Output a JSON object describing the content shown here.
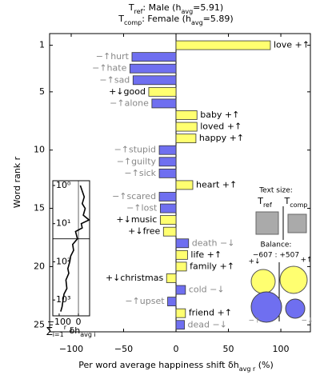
{
  "chart_data": {
    "type": "bar",
    "orientation": "horizontal",
    "title_lines": [
      [
        {
          "text": "T"
        },
        {
          "text": "ref",
          "sub": true
        },
        {
          "text": ": Male ("
        },
        {
          "text": "h"
        },
        {
          "text": "avg",
          "sub": true
        },
        {
          "text": "=5.91)"
        }
      ],
      [
        {
          "text": "T"
        },
        {
          "text": "comp",
          "sub": true
        },
        {
          "text": ": Female ("
        },
        {
          "text": "h"
        },
        {
          "text": "avg",
          "sub": true
        },
        {
          "text": "=5.89)"
        }
      ]
    ],
    "x_label": [
      {
        "text": "Per word average happiness shift δh"
      },
      {
        "text": "avg r",
        "sub": true
      },
      {
        "text": " (%)"
      }
    ],
    "y_label": "Word rank r",
    "categories": [
      "love +↑",
      "−↑hurt",
      "−↑hate",
      "−↑sad",
      "+↓good",
      "−↑alone",
      "baby +↑",
      "loved +↑",
      "happy +↑",
      "−↑stupid",
      "−↑guilty",
      "−↑sick",
      "heart +↑",
      "−↑scared",
      "−↑lost",
      "+↓music",
      "+↓free",
      "death −↓",
      "life +↑",
      "family +↑",
      "+↓christmas",
      "cold −↓",
      "−↑upset",
      "friend +↑",
      "dead −↓"
    ],
    "values": [
      90,
      -42,
      -44,
      -41,
      -26,
      -23,
      20,
      20,
      19,
      -16,
      -16,
      -16,
      16,
      -16,
      -15,
      -15,
      -12,
      12,
      11,
      10,
      -9,
      9,
      -8,
      9,
      8
    ],
    "colors": [
      "#ffff70",
      "#6f6ff0",
      "#6f6ff0",
      "#6f6ff0",
      "#ffff70",
      "#6f6ff0",
      "#ffff70",
      "#ffff70",
      "#ffff70",
      "#6f6ff0",
      "#6f6ff0",
      "#6f6ff0",
      "#ffff70",
      "#6f6ff0",
      "#6f6ff0",
      "#ffff70",
      "#ffff70",
      "#6f6ff0",
      "#ffff70",
      "#ffff70",
      "#ffff70",
      "#6f6ff0",
      "#6f6ff0",
      "#ffff70",
      "#6f6ff0"
    ],
    "label_colors": [
      "#000",
      "#888",
      "#888",
      "#888",
      "#000",
      "#888",
      "#000",
      "#000",
      "#000",
      "#888",
      "#888",
      "#888",
      "#000",
      "#888",
      "#888",
      "#000",
      "#000",
      "#888",
      "#000",
      "#000",
      "#000",
      "#888",
      "#888",
      "#000",
      "#888"
    ],
    "xlim": [
      -120.6,
      128.2
    ],
    "xticks": [
      {
        "value": -100,
        "label": "−100"
      },
      {
        "value": -50,
        "label": "−50"
      },
      0,
      50,
      100
    ],
    "ylim": [
      0,
      25.6
    ],
    "yticks": [
      1,
      5,
      10,
      15,
      20,
      25
    ],
    "inset_cumulative": {
      "ranks": [
        1,
        2,
        3,
        4,
        6,
        8,
        10,
        13,
        16,
        20,
        25,
        35,
        50,
        70,
        100,
        150,
        200,
        300,
        500,
        700,
        1000,
        1500,
        2000
      ],
      "values": [
        10,
        30,
        20,
        35,
        25,
        55,
        15,
        20,
        -15,
        -10,
        -5,
        -30,
        -25,
        -40,
        -45,
        -55,
        -50,
        -65,
        -60,
        -75,
        -80,
        -85,
        -92
      ],
      "xlim": [
        -133,
        58
      ],
      "xticks": [
        {
          "value": -100,
          "label": "−100"
        },
        0
      ],
      "ylim": [
        0.75,
        2600
      ],
      "yticks": [
        {
          "value": 1,
          "label": "10⁰"
        },
        {
          "value": 10,
          "label": "10¹"
        },
        {
          "value": 100,
          "label": "10²"
        },
        {
          "value": 1000,
          "label": "10³"
        }
      ],
      "hline": 25,
      "label": [
        {
          "text": "∑"
        },
        {
          "text": "i=1",
          "sub": true
        },
        {
          "text": "r",
          "sup": true
        },
        {
          "text": " δh"
        },
        {
          "text": "avg i",
          "sub": true
        }
      ]
    },
    "inset_text_size": {
      "title": "Text size:",
      "ref": [
        {
          "text": "T"
        },
        {
          "text": "ref",
          "sub": true
        }
      ],
      "comp": [
        {
          "text": "T"
        },
        {
          "text": "comp",
          "sub": true
        }
      ]
    },
    "inset_balance": {
      "title": "Balance:",
      "totals": "−607 : +507",
      "labels": [
        "+↓",
        "+↑",
        "−↑",
        "−↓"
      ]
    }
  }
}
